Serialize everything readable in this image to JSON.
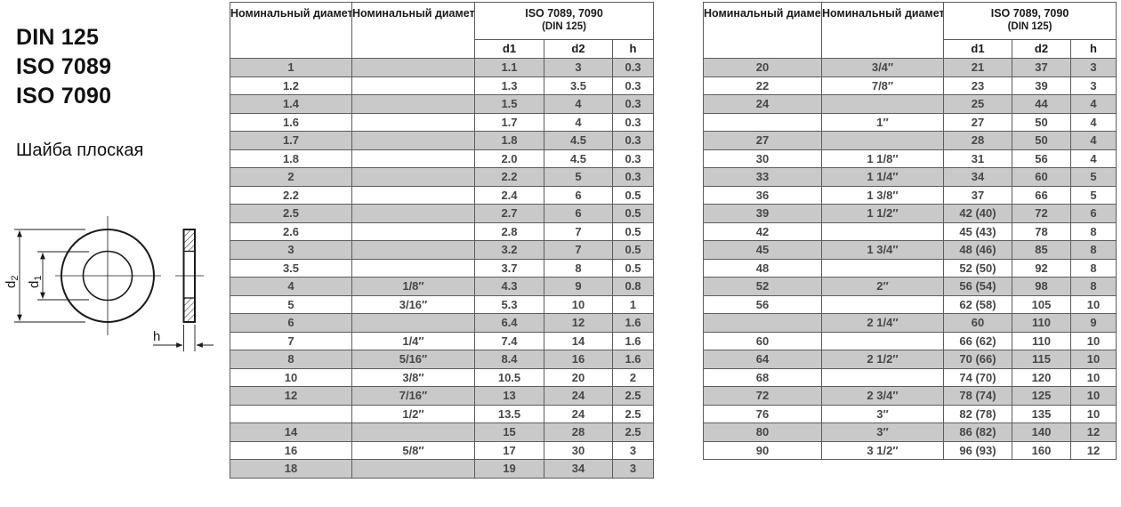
{
  "header": {
    "standards": [
      "DIN 125",
      "ISO 7089",
      "ISO 7090"
    ],
    "product_name": "Шайба плоская"
  },
  "diagram": {
    "d2_label": {
      "base": "d",
      "sub": "2"
    },
    "d1_label": {
      "base": "d",
      "sub": "1"
    },
    "h_label": "h"
  },
  "table_header": {
    "col_mm": "Номинальный диаметр, мм",
    "col_inch": "Номинальный диаметр, дюйм",
    "iso_line1": "ISO 7089, 7090",
    "iso_line2": "(DIN 125)",
    "sub_d1": "d1",
    "sub_d2": "d2",
    "sub_h": "h"
  },
  "table1": {
    "rows": [
      [
        "1",
        "",
        "1.1",
        "3",
        "0.3"
      ],
      [
        "1.2",
        "",
        "1.3",
        "3.5",
        "0.3"
      ],
      [
        "1.4",
        "",
        "1.5",
        "4",
        "0.3"
      ],
      [
        "1.6",
        "",
        "1.7",
        "4",
        "0.3"
      ],
      [
        "1.7",
        "",
        "1.8",
        "4.5",
        "0.3"
      ],
      [
        "1.8",
        "",
        "2.0",
        "4.5",
        "0.3"
      ],
      [
        "2",
        "",
        "2.2",
        "5",
        "0.3"
      ],
      [
        "2.2",
        "",
        "2.4",
        "6",
        "0.5"
      ],
      [
        "2.5",
        "",
        "2.7",
        "6",
        "0.5"
      ],
      [
        "2.6",
        "",
        "2.8",
        "7",
        "0.5"
      ],
      [
        "3",
        "",
        "3.2",
        "7",
        "0.5"
      ],
      [
        "3.5",
        "",
        "3.7",
        "8",
        "0.5"
      ],
      [
        "4",
        "1/8″",
        "4.3",
        "9",
        "0.8"
      ],
      [
        "5",
        "3/16″",
        "5.3",
        "10",
        "1"
      ],
      [
        "6",
        "",
        "6.4",
        "12",
        "1.6"
      ],
      [
        "7",
        "1/4″",
        "7.4",
        "14",
        "1.6"
      ],
      [
        "8",
        "5/16″",
        "8.4",
        "16",
        "1.6"
      ],
      [
        "10",
        "3/8″",
        "10.5",
        "20",
        "2"
      ],
      [
        "12",
        "7/16″",
        "13",
        "24",
        "2.5"
      ],
      [
        "",
        "1/2″",
        "13.5",
        "24",
        "2.5"
      ],
      [
        "14",
        "",
        "15",
        "28",
        "2.5"
      ],
      [
        "16",
        "5/8″",
        "17",
        "30",
        "3"
      ],
      [
        "18",
        "",
        "19",
        "34",
        "3"
      ]
    ]
  },
  "table2": {
    "rows": [
      [
        "20",
        "3/4″",
        "21",
        "37",
        "3"
      ],
      [
        "22",
        "7/8″",
        "23",
        "39",
        "3"
      ],
      [
        "24",
        "",
        "25",
        "44",
        "4"
      ],
      [
        "",
        "1″",
        "27",
        "50",
        "4"
      ],
      [
        "27",
        "",
        "28",
        "50",
        "4"
      ],
      [
        "30",
        "1 1/8″",
        "31",
        "56",
        "4"
      ],
      [
        "33",
        "1 1/4″",
        "34",
        "60",
        "5"
      ],
      [
        "36",
        "1 3/8″",
        "37",
        "66",
        "5"
      ],
      [
        "39",
        "1 1/2″",
        "42 (40)",
        "72",
        "6"
      ],
      [
        "42",
        "",
        "45 (43)",
        "78",
        "8"
      ],
      [
        "45",
        "1 3/4″",
        "48 (46)",
        "85",
        "8"
      ],
      [
        "48",
        "",
        "52 (50)",
        "92",
        "8"
      ],
      [
        "52",
        "2″",
        "56 (54)",
        "98",
        "8"
      ],
      [
        "56",
        "",
        "62 (58)",
        "105",
        "10"
      ],
      [
        "",
        "2 1/4″",
        "60",
        "110",
        "9"
      ],
      [
        "60",
        "",
        "66 (62)",
        "110",
        "10"
      ],
      [
        "64",
        "2 1/2″",
        "70 (66)",
        "115",
        "10"
      ],
      [
        "68",
        "",
        "74 (70)",
        "120",
        "10"
      ],
      [
        "72",
        "2 3/4″",
        "78 (74)",
        "125",
        "10"
      ],
      [
        "76",
        "3″",
        "82 (78)",
        "135",
        "10"
      ],
      [
        "80",
        "3″",
        "86 (82)",
        "140",
        "12"
      ],
      [
        "90",
        "3 1/2″",
        "96 (93)",
        "160",
        "12"
      ]
    ]
  },
  "colors": {
    "shaded_row": "#c9c9c9",
    "border": "#5c5c5c",
    "text": "#474747"
  }
}
